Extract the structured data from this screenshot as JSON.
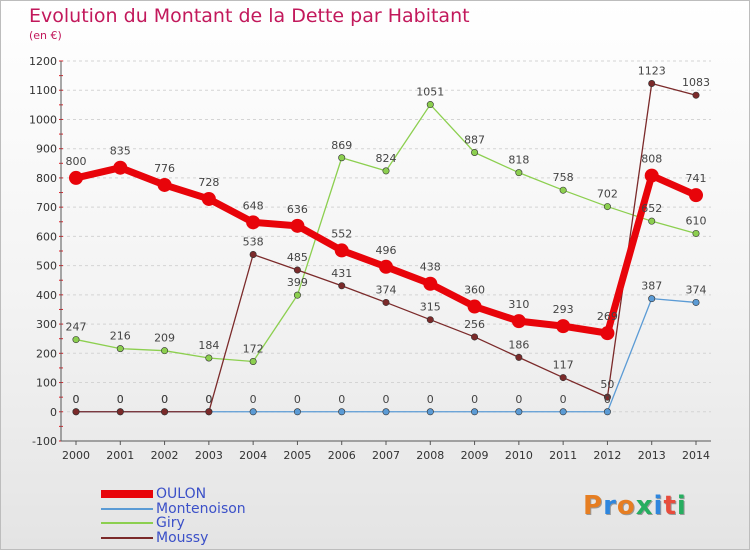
{
  "header": {
    "title": "Evolution du Montant de la Dette par Habitant",
    "subtitle": "(en €)"
  },
  "brand": {
    "text": "Proxiti",
    "colors": [
      "#e67e22",
      "#2e86de",
      "#e67e22",
      "#27ae60",
      "#2e86de",
      "#e74c3c",
      "#27ae60"
    ]
  },
  "chart_data": {
    "type": "line",
    "title": "Evolution du Montant de la Dette par Habitant",
    "subtitle": "(en €)",
    "xlabel": "",
    "ylabel": "",
    "x": [
      "2000",
      "2001",
      "2002",
      "2003",
      "2004",
      "2005",
      "2006",
      "2007",
      "2008",
      "2009",
      "2010",
      "2011",
      "2012",
      "2013",
      "2014"
    ],
    "ylim": [
      -100,
      1200
    ],
    "yticks": [
      -100,
      0,
      100,
      200,
      300,
      400,
      500,
      600,
      700,
      800,
      900,
      1000,
      1100,
      1200
    ],
    "grid": "horizontal",
    "legend_placement": "bottom-left",
    "series": [
      {
        "name": "OULON",
        "color": "#e8040a",
        "values": [
          800,
          835,
          776,
          728,
          648,
          636,
          552,
          496,
          438,
          360,
          310,
          293,
          269,
          808,
          741
        ]
      },
      {
        "name": "Montenoison",
        "color": "#5b9bd5",
        "values": [
          0,
          0,
          0,
          0,
          0,
          0,
          0,
          0,
          0,
          0,
          0,
          0,
          0,
          387,
          374
        ]
      },
      {
        "name": "Giry",
        "color": "#8ccf4f",
        "values": [
          247,
          216,
          209,
          184,
          172,
          399,
          869,
          824,
          1051,
          887,
          818,
          758,
          702,
          652,
          610
        ]
      },
      {
        "name": "Moussy",
        "color": "#7b2a2a",
        "values": [
          0,
          0,
          0,
          0,
          538,
          485,
          431,
          374,
          315,
          256,
          186,
          117,
          50,
          1123,
          1083
        ]
      }
    ]
  }
}
